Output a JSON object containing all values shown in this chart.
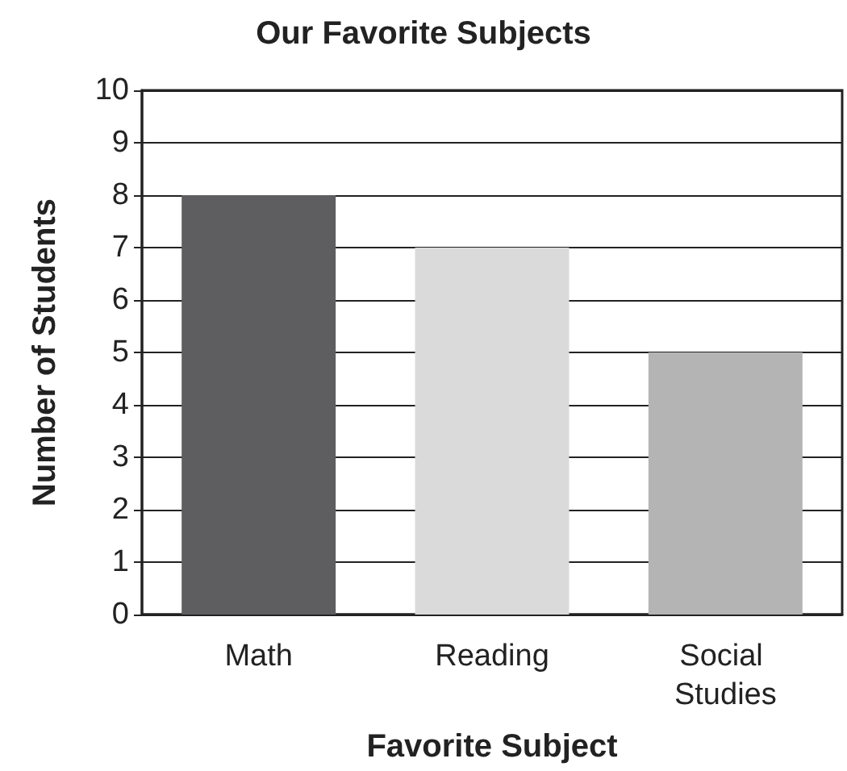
{
  "chart_data": {
    "type": "bar",
    "title": "Our Favorite Subjects",
    "xlabel": "Favorite Subject",
    "ylabel": "Number of Students",
    "categories": [
      "Math",
      "Reading",
      "Social Studies"
    ],
    "values": [
      8,
      7,
      5
    ],
    "colors": [
      "#5e5e60",
      "#dadada",
      "#b4b4b4"
    ],
    "ylim": [
      0,
      10
    ],
    "yticks": [
      0,
      1,
      2,
      3,
      4,
      5,
      6,
      7,
      8,
      9,
      10
    ],
    "grid": "y"
  }
}
